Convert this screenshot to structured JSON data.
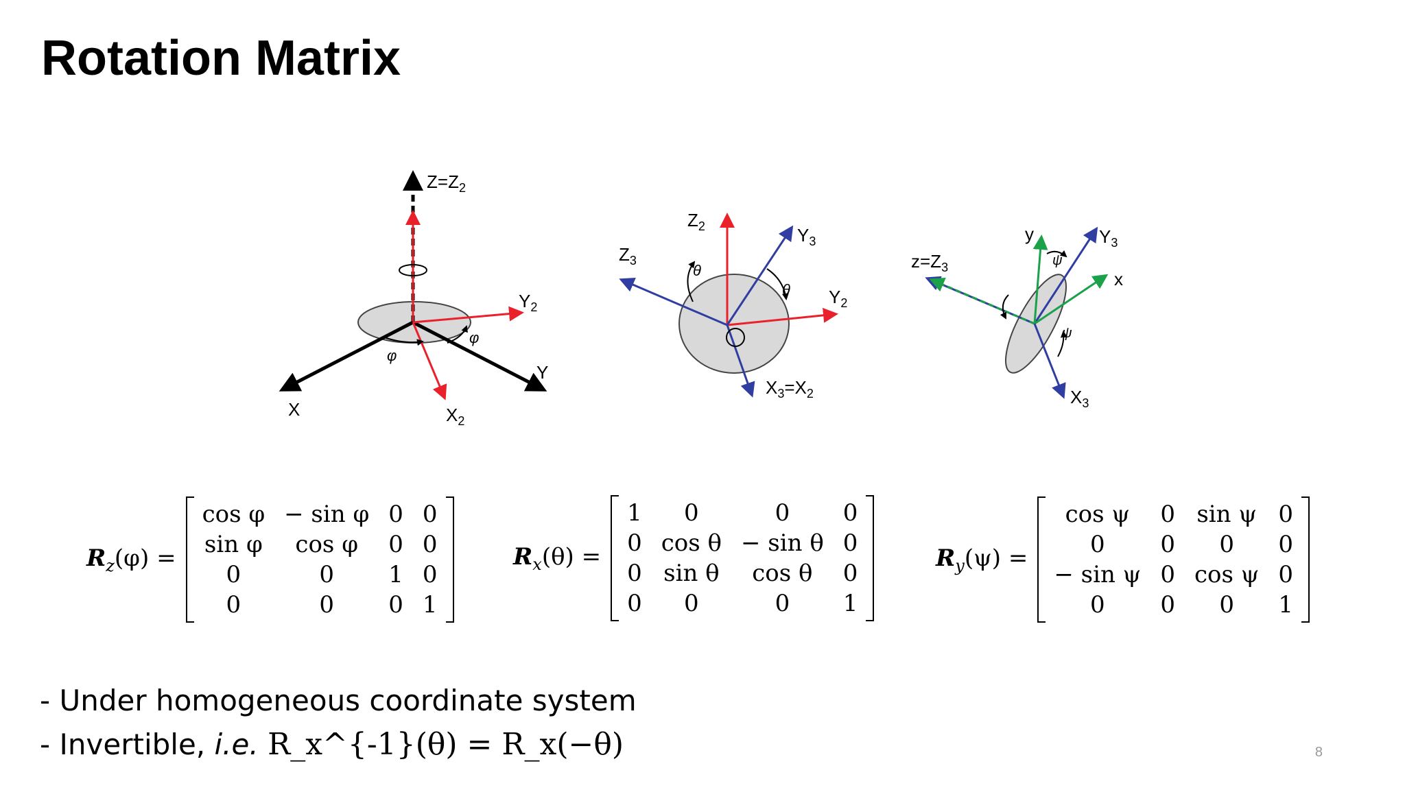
{
  "slide": {
    "title": "Rotation Matrix",
    "page_number": "8"
  },
  "figure": {
    "labels": {
      "z_eq_z2": "Z=Z",
      "sub2": "2",
      "sub3": "3",
      "Y2": "Y",
      "Y": "Y",
      "X": "X",
      "X2": "X",
      "phi": "φ",
      "Z2": "Z",
      "Z3": "Z",
      "Y3": "Y",
      "theta": "θ",
      "X3_eq_X2": "X",
      "eq_X": "=X",
      "z_eq_Z3": "z=Z",
      "y": "y",
      "x": "x",
      "psi": "ψ",
      "X3": "X"
    },
    "colors": {
      "black_axis": "#000000",
      "red_axis": "#e8212b",
      "blue_axis": "#2f3ea0",
      "green_axis": "#1aa14a",
      "disc_fill": "#d9d9d9"
    }
  },
  "matrices": {
    "rz": {
      "lhs_R": "R",
      "lhs_sub": "z",
      "lhs_arg": "(φ) =",
      "rows": [
        [
          "cos φ",
          "− sin φ",
          "0",
          "0"
        ],
        [
          "sin φ",
          "cos φ",
          "0",
          "0"
        ],
        [
          "0",
          "0",
          "1",
          "0"
        ],
        [
          "0",
          "0",
          "0",
          "1"
        ]
      ]
    },
    "rx": {
      "lhs_R": "R",
      "lhs_sub": "x",
      "lhs_arg": "(θ) =",
      "rows": [
        [
          "1",
          "0",
          "0",
          "0"
        ],
        [
          "0",
          "cos θ",
          "− sin θ",
          "0"
        ],
        [
          "0",
          "sin θ",
          "cos θ",
          "0"
        ],
        [
          "0",
          "0",
          "0",
          "1"
        ]
      ]
    },
    "ry": {
      "lhs_R": "R",
      "lhs_sub": "y",
      "lhs_arg": "(ψ) =",
      "rows": [
        [
          "cos ψ",
          "0",
          "sin ψ",
          "0"
        ],
        [
          "0",
          "0",
          "0",
          "0"
        ],
        [
          "− sin ψ",
          "0",
          "cos ψ",
          "0"
        ],
        [
          "0",
          "0",
          "0",
          "1"
        ]
      ]
    }
  },
  "bullets": {
    "line1": "- Under homogeneous coordinate system",
    "line2_prefix": "- Invertible, ",
    "line2_ie": "i.e.",
    "line2_math": "R_x^{-1}(θ) = R_x(−θ)"
  }
}
